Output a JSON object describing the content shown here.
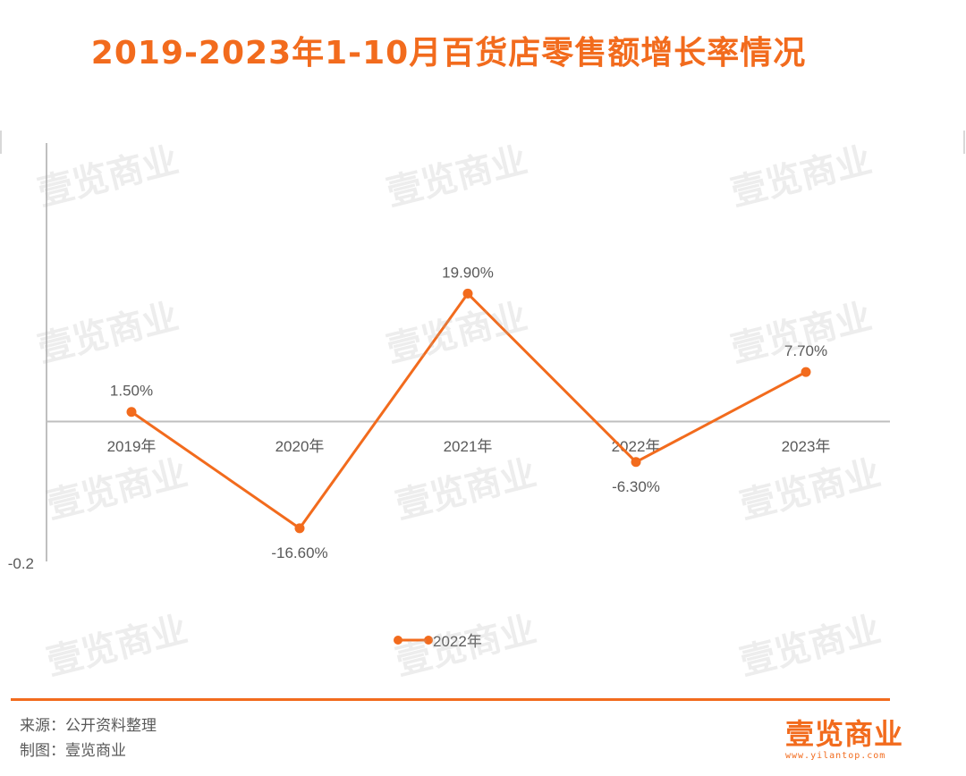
{
  "title": "2019-2023年1-10月百货店零售额增长率情况",
  "colors": {
    "accent": "#f26b1d",
    "line": "#f26b1d",
    "axis": "#bfbfbf",
    "text": "#595959"
  },
  "chart_data": {
    "type": "line",
    "categories": [
      "2019年",
      "2020年",
      "2021年",
      "2022年",
      "2023年"
    ],
    "series": [
      {
        "name": "2022年",
        "values": [
          1.5,
          -16.6,
          19.9,
          -6.3,
          7.7
        ],
        "labels": [
          "1.50%",
          "-16.60%",
          "19.90%",
          "-6.30%",
          "7.70%"
        ]
      }
    ],
    "ylim": [
      -20,
      25
    ],
    "y_tick_labels": [
      "-0.2"
    ],
    "legend": "bottom-center",
    "grid": false
  },
  "watermark": "壹览商业",
  "footer": {
    "source": "来源：公开资料整理",
    "maker": "制图：壹览商业"
  },
  "logo": {
    "text": "壹览商业",
    "url": "www.yilantop.com"
  }
}
